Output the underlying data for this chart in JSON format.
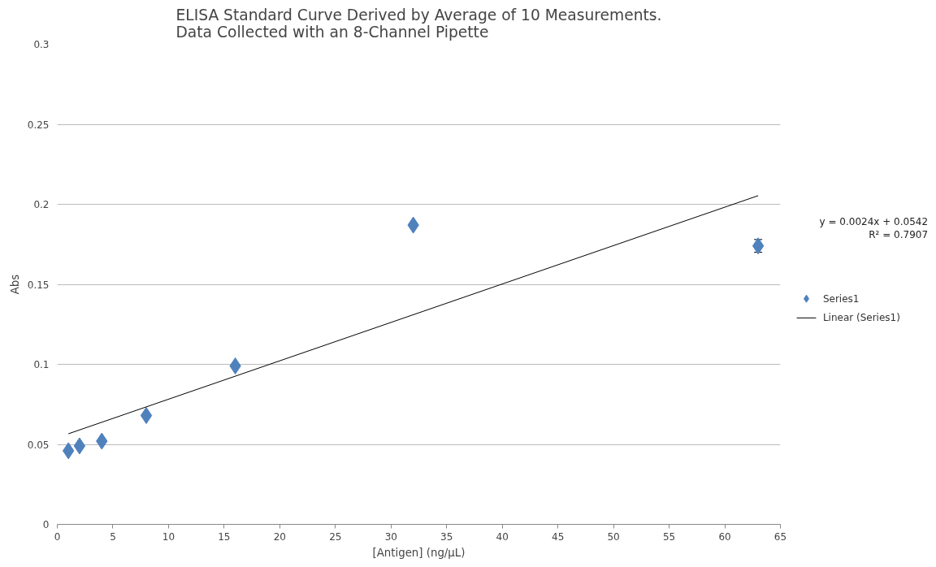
{
  "chart_data": {
    "type": "scatter",
    "title": "ELISA Standard Curve Derived by Average of 10 Measurements.\nData Collected with an 8-Channel Pipette",
    "xlabel": "[Antigen] (ng/µL)",
    "ylabel": "Abs",
    "x": [
      1,
      2,
      4,
      8,
      16,
      32,
      63
    ],
    "series": [
      {
        "name": "Series1",
        "marker": "diamond",
        "color": "#4f81bd",
        "values": [
          0.046,
          0.049,
          0.052,
          0.068,
          0.099,
          0.187,
          0.174
        ],
        "errors": [
          null,
          null,
          null,
          null,
          null,
          null,
          0.004
        ]
      },
      {
        "name": "Linear (Series1)",
        "type": "line",
        "color": "#000000",
        "x": [
          1,
          63
        ],
        "values": [
          0.0566,
          0.2054
        ]
      }
    ],
    "annotations": [
      "y = 0.0024x + 0.0542",
      "R² = 0.7907"
    ],
    "xlim": [
      0,
      65
    ],
    "xticks": [
      0,
      5,
      10,
      15,
      20,
      25,
      30,
      35,
      40,
      45,
      50,
      55,
      60,
      65
    ],
    "ylim": [
      0,
      0.3
    ],
    "yticks": [
      0,
      {
        "value": 0.05,
        "label": "0.05"
      },
      {
        "value": 0.1,
        "label": "0.1"
      },
      {
        "value": 0.15,
        "label": "0.15"
      },
      {
        "value": 0.2,
        "label": "0.2"
      },
      {
        "value": 0.25,
        "label": "0.25"
      },
      {
        "value": 0.3,
        "label": "0.3"
      }
    ],
    "grid": "y",
    "legend": "right"
  }
}
